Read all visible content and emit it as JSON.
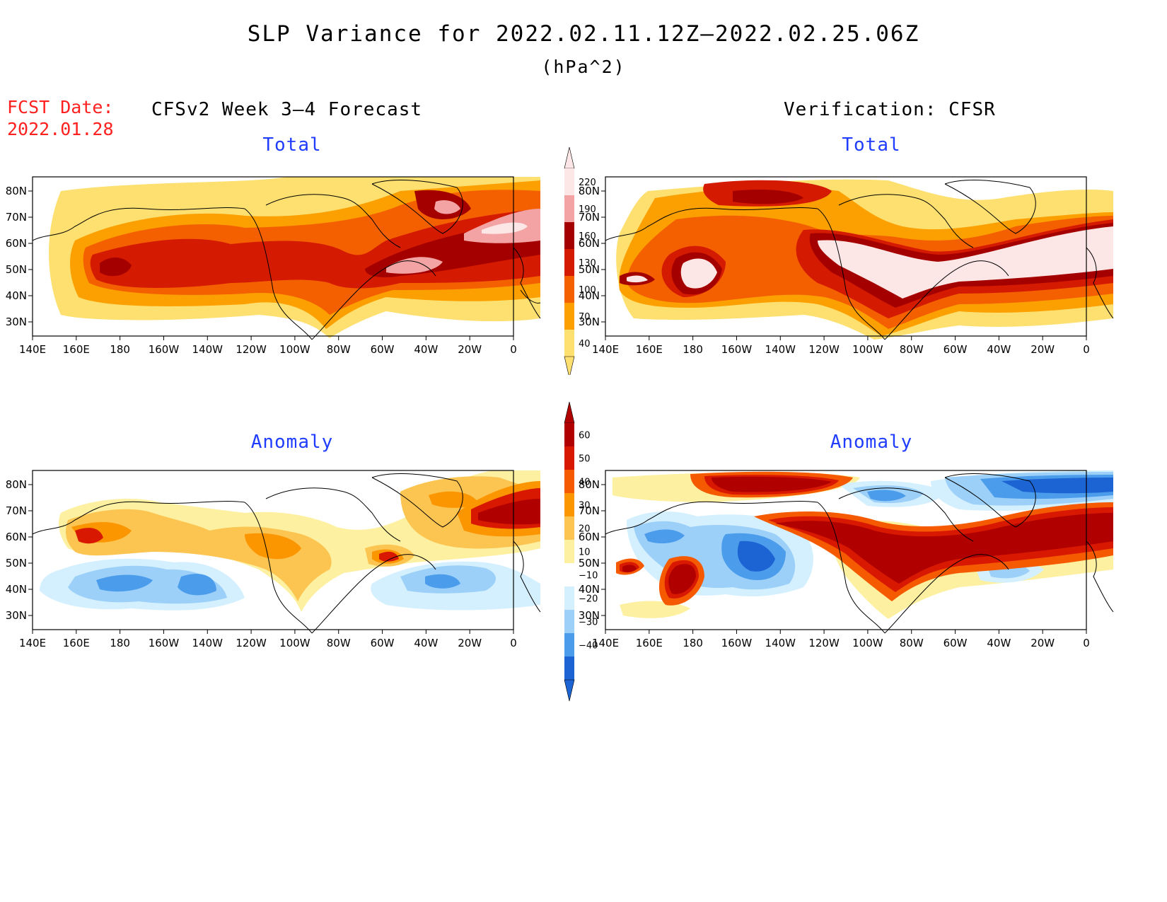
{
  "title": "SLP Variance for 2022.02.11.12Z–2022.02.25.06Z",
  "units": "(hPa^2)",
  "fcst_date": {
    "label": "FCST Date:",
    "value": "2022.01.28"
  },
  "headers": {
    "left": "CFSv2 Week 3–4 Forecast",
    "right": "Verification: CFSR"
  },
  "panels": [
    {
      "title": "Total"
    },
    {
      "title": "Total"
    },
    {
      "title": "Anomaly"
    },
    {
      "title": "Anomaly"
    }
  ],
  "map_axes": {
    "lat_labels": [
      "80N",
      "70N",
      "60N",
      "50N",
      "40N",
      "30N"
    ],
    "lon_labels": [
      "140E",
      "160E",
      "180",
      "160W",
      "140W",
      "120W",
      "100W",
      "80W",
      "60W",
      "40W",
      "20W",
      "0"
    ]
  },
  "colorbars": {
    "total": {
      "labels": [
        "220",
        "190",
        "160",
        "130",
        "100",
        "70",
        "40"
      ],
      "colors": [
        "#fde6e6",
        "#f3a3a3",
        "#a50000",
        "#d41a00",
        "#f46000",
        "#fba000",
        "#fde070"
      ]
    },
    "anomaly": {
      "labels": [
        "60",
        "50",
        "40",
        "30",
        "20",
        "10",
        "−10",
        "−20",
        "−30",
        "−40"
      ],
      "colors": [
        "#b00000",
        "#d81800",
        "#f55a00",
        "#fb9500",
        "#fcc450",
        "#fdf0a0",
        "#ffffff",
        "#d4f0ff",
        "#9cd0f8",
        "#4c9cec",
        "#1c64d4"
      ]
    }
  },
  "colors": {
    "title_blue": "#1f3cff",
    "fcst_red": "#ff2020"
  }
}
